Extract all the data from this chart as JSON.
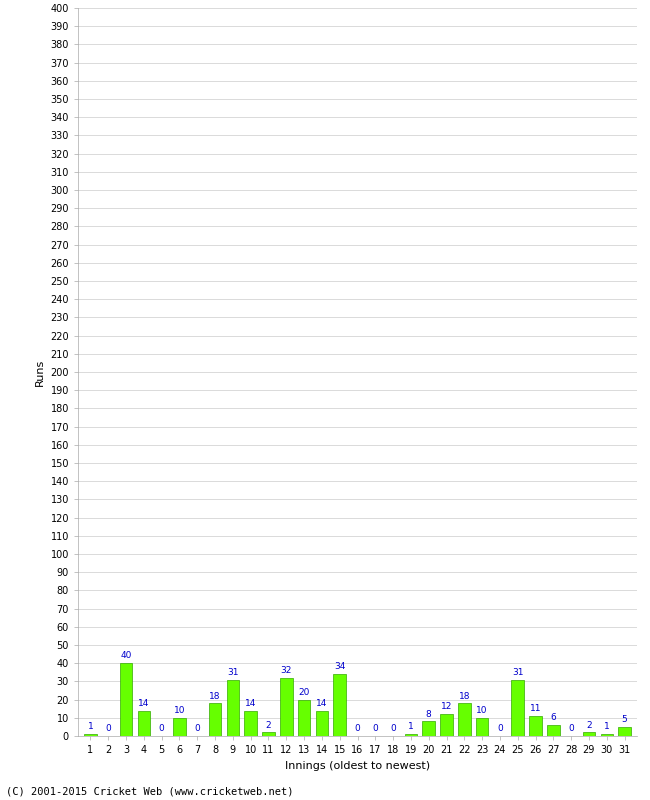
{
  "innings": [
    1,
    2,
    3,
    4,
    5,
    6,
    7,
    8,
    9,
    10,
    11,
    12,
    13,
    14,
    15,
    16,
    17,
    18,
    19,
    20,
    21,
    22,
    23,
    24,
    25,
    26,
    27,
    28,
    29,
    30,
    31
  ],
  "runs": [
    1,
    0,
    40,
    14,
    0,
    10,
    0,
    18,
    31,
    14,
    2,
    32,
    20,
    14,
    34,
    0,
    0,
    0,
    1,
    8,
    12,
    18,
    10,
    0,
    31,
    11,
    6,
    0,
    2,
    1,
    5
  ],
  "bar_color": "#66ff00",
  "bar_edge_color": "#33aa00",
  "label_color": "#0000cc",
  "background_color": "#ffffff",
  "grid_color": "#cccccc",
  "ylabel": "Runs",
  "xlabel": "Innings (oldest to newest)",
  "ylim": [
    0,
    400
  ],
  "footer": "(C) 2001-2015 Cricket Web (www.cricketweb.net)"
}
